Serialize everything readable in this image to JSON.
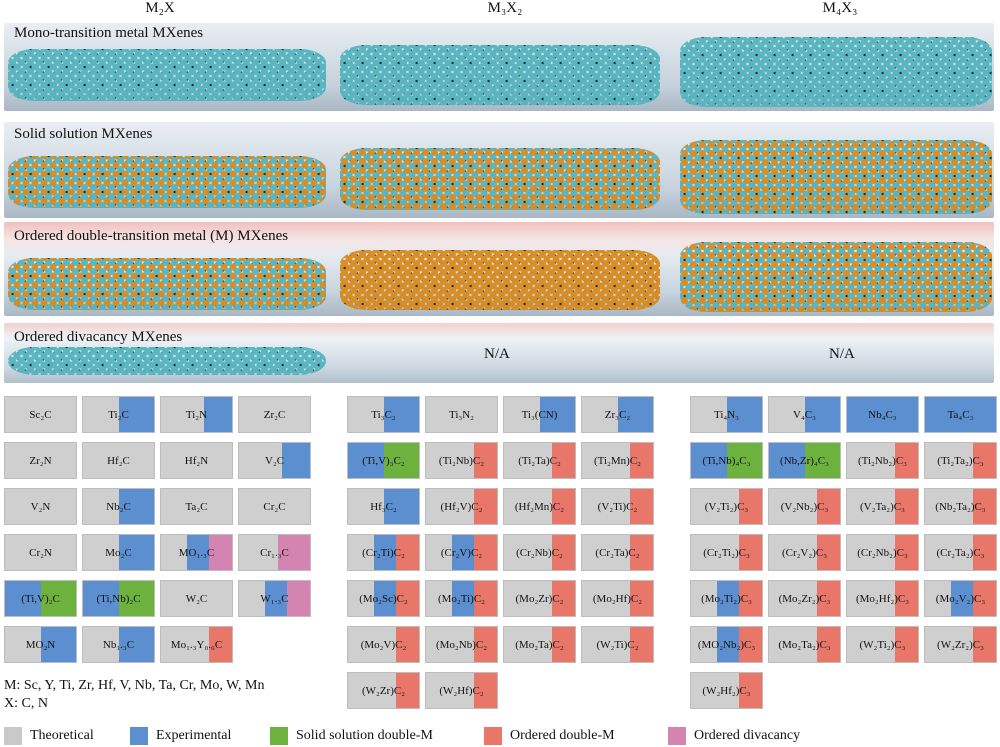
{
  "colors": {
    "theoretical": "#c9c9c9",
    "experimental": "#5b8fd0",
    "solid_solution": "#6db13e",
    "ordered_double": "#e8776a",
    "ordered_divacancy": "#d484b0",
    "teal_atom": "#52b5c0",
    "orange_atom": "#d98a1c"
  },
  "column_headers": [
    "M₂X",
    "M₃X₂",
    "M₄X₃"
  ],
  "rows": [
    {
      "title": "Mono-transition metal MXenes"
    },
    {
      "title": "Solid solution MXenes"
    },
    {
      "title": "Ordered double-transition metal (M) MXenes"
    },
    {
      "title": "Ordered divacancy MXenes"
    }
  ],
  "na_label": "N/A",
  "grids": {
    "m2x": [
      [
        {
          "label": "Sc₂C",
          "fills": []
        },
        {
          "label": "Ti₂C",
          "fills": [
            [
              "experimental",
              0.5
            ]
          ]
        },
        {
          "label": "Ti₂N",
          "fills": [
            [
              "experimental",
              0.4
            ]
          ]
        },
        {
          "label": "Zr₂C",
          "fills": []
        }
      ],
      [
        {
          "label": "Zr₂N",
          "fills": []
        },
        {
          "label": "Hf₂C",
          "fills": []
        },
        {
          "label": "Hf₂N",
          "fills": []
        },
        {
          "label": "V₂C",
          "fills": [
            [
              "experimental",
              0.4
            ]
          ]
        }
      ],
      [
        {
          "label": "V₂N",
          "fills": []
        },
        {
          "label": "Nb₂C",
          "fills": [
            [
              "experimental",
              0.5
            ]
          ]
        },
        {
          "label": "Ta₂C",
          "fills": []
        },
        {
          "label": "Cr₂C",
          "fills": []
        }
      ],
      [
        {
          "label": "Cr₂N",
          "fills": []
        },
        {
          "label": "Mo₂C",
          "fills": [
            [
              "experimental",
              0.5
            ]
          ]
        },
        {
          "label": "MO₁.₃C",
          "fills": [
            [
              "experimental",
              0.3
            ],
            [
              "ordered_divacancy",
              0.33
            ]
          ]
        },
        {
          "label": "Cr₁.₃C",
          "fills": [
            [
              "ordered_divacancy",
              0.45
            ]
          ]
        }
      ],
      [
        {
          "label": "(Ti,V)₂C",
          "fills": [
            [
              "experimental",
              0.5
            ],
            [
              "solid_solution",
              0.5
            ]
          ]
        },
        {
          "label": "(Ti,Nb)₂C",
          "fills": [
            [
              "experimental",
              0.5
            ],
            [
              "solid_solution",
              0.5
            ]
          ]
        },
        {
          "label": "W₂C",
          "fills": []
        },
        {
          "label": "W₁.₃C",
          "fills": [
            [
              "experimental",
              0.3
            ],
            [
              "ordered_divacancy",
              0.33
            ]
          ]
        }
      ],
      [
        {
          "label": "MO₂N",
          "fills": [
            [
              "experimental",
              0.5
            ]
          ]
        },
        {
          "label": "Nb₁.₃C",
          "fills": [
            [
              "experimental",
              0.5
            ]
          ]
        },
        {
          "label": "Mo₁.₃Y₀.₆C",
          "fills": [
            [
              "ordered_double",
              0.33
            ]
          ]
        },
        null
      ]
    ],
    "m3x2": [
      [
        {
          "label": "Ti₃C₂",
          "fills": [
            [
              "experimental",
              0.5
            ]
          ]
        },
        {
          "label": "Ti₃N₂",
          "fills": []
        },
        {
          "label": "Ti₃(CN)",
          "fills": [
            [
              "experimental",
              0.5
            ]
          ]
        },
        {
          "label": "Zr₃C₂",
          "fills": [
            [
              "experimental",
              0.5
            ]
          ]
        }
      ],
      [
        {
          "label": "(Ti,V)₃C₂",
          "fills": [
            [
              "experimental",
              0.5
            ],
            [
              "solid_solution",
              0.5
            ]
          ]
        },
        {
          "label": "(Ti₂Nb)C₂",
          "fills": [
            [
              "ordered_double",
              0.33
            ]
          ]
        },
        {
          "label": "(Ti₂Ta)C₂",
          "fills": [
            [
              "ordered_double",
              0.33
            ]
          ]
        },
        {
          "label": "(Ti₂Mn)C₂",
          "fills": [
            [
              "ordered_double",
              0.33
            ]
          ]
        }
      ],
      [
        {
          "label": "Hf₃C₂",
          "fills": [
            [
              "experimental",
              0.5
            ]
          ]
        },
        {
          "label": "(Hf₂V)C₂",
          "fills": [
            [
              "ordered_double",
              0.33
            ]
          ]
        },
        {
          "label": "(Hf₂Mn)C₂",
          "fills": [
            [
              "ordered_double",
              0.33
            ]
          ]
        },
        {
          "label": "(V₂Ti)C₂",
          "fills": [
            [
              "ordered_double",
              0.33
            ]
          ]
        }
      ],
      [
        {
          "label": "(Cr₂Ti)C₂",
          "fills": [
            [
              "experimental",
              0.3
            ],
            [
              "ordered_double",
              0.33
            ]
          ]
        },
        {
          "label": "(Cr₂V)C₂",
          "fills": [
            [
              "experimental",
              0.3
            ],
            [
              "ordered_double",
              0.33
            ]
          ]
        },
        {
          "label": "(Cr₂Nb)C₂",
          "fills": [
            [
              "ordered_double",
              0.33
            ]
          ]
        },
        {
          "label": "(Cr₂Ta)C₂",
          "fills": [
            [
              "ordered_double",
              0.33
            ]
          ]
        }
      ],
      [
        {
          "label": "(Mo₂Sc)C₂",
          "fills": [
            [
              "experimental",
              0.3
            ],
            [
              "ordered_double",
              0.33
            ]
          ]
        },
        {
          "label": "(Mo₂Ti)C₂",
          "fills": [
            [
              "experimental",
              0.3
            ],
            [
              "ordered_double",
              0.33
            ]
          ]
        },
        {
          "label": "(Mo₂Zr)C₂",
          "fills": [
            [
              "ordered_double",
              0.33
            ]
          ]
        },
        {
          "label": "(Mo₂Hf)C₂",
          "fills": [
            [
              "ordered_double",
              0.33
            ]
          ]
        }
      ],
      [
        {
          "label": "(Mo₂V)C₂",
          "fills": [
            [
              "ordered_double",
              0.33
            ]
          ]
        },
        {
          "label": "(Mo₂Nb)C₂",
          "fills": [
            [
              "ordered_double",
              0.33
            ]
          ]
        },
        {
          "label": "(Mo₂Ta)C₂",
          "fills": [
            [
              "ordered_double",
              0.33
            ]
          ]
        },
        {
          "label": "(W₂Ti)C₂",
          "fills": [
            [
              "ordered_double",
              0.33
            ]
          ]
        }
      ],
      [
        {
          "label": "(W₂Zr)C₂",
          "fills": [
            [
              "ordered_double",
              0.33
            ]
          ]
        },
        {
          "label": "(W₂Hf)C₂",
          "fills": [
            [
              "ordered_double",
              0.33
            ]
          ]
        },
        null,
        null
      ]
    ],
    "m4x3": [
      [
        {
          "label": "Ti₄N₃",
          "fills": [
            [
              "experimental",
              0.5
            ]
          ]
        },
        {
          "label": "V₄C₃",
          "fills": [
            [
              "experimental",
              0.5
            ]
          ]
        },
        {
          "label": "Nb₄C₃",
          "fills": [
            [
              "experimental",
              1.0
            ]
          ]
        },
        {
          "label": "Ta₄C₃",
          "fills": [
            [
              "experimental",
              1.0
            ]
          ]
        }
      ],
      [
        {
          "label": "(Ti,Nb)₄C₃",
          "fills": [
            [
              "experimental",
              0.5
            ],
            [
              "solid_solution",
              0.5
            ]
          ]
        },
        {
          "label": "(Nb,Zr)₄C₃",
          "fills": [
            [
              "experimental",
              0.5
            ],
            [
              "solid_solution",
              0.5
            ]
          ]
        },
        {
          "label": "(Ti₂Nb₂)C₃",
          "fills": [
            [
              "ordered_double",
              0.33
            ]
          ]
        },
        {
          "label": "(Ti₂Ta₂)C₃",
          "fills": [
            [
              "ordered_double",
              0.33
            ]
          ]
        }
      ],
      [
        {
          "label": "(V₂Ti₂)C₃",
          "fills": [
            [
              "ordered_double",
              0.33
            ]
          ]
        },
        {
          "label": "(V₂Nb₂)C₃",
          "fills": [
            [
              "ordered_double",
              0.33
            ]
          ]
        },
        {
          "label": "(V₂Ta₂)C₃",
          "fills": [
            [
              "ordered_double",
              0.33
            ]
          ]
        },
        {
          "label": "(Nb₂Ta₂)C₃",
          "fills": [
            [
              "ordered_double",
              0.33
            ]
          ]
        }
      ],
      [
        {
          "label": "(Cr₂Ti₂)C₃",
          "fills": [
            [
              "ordered_double",
              0.33
            ]
          ]
        },
        {
          "label": "(Cr₂V₂)C₃",
          "fills": [
            [
              "ordered_double",
              0.33
            ]
          ]
        },
        {
          "label": "(Cr₂Nb₂)C₃",
          "fills": [
            [
              "ordered_double",
              0.33
            ]
          ]
        },
        {
          "label": "(Cr₂Ta₂)C₃",
          "fills": [
            [
              "ordered_double",
              0.33
            ]
          ]
        }
      ],
      [
        {
          "label": "(Mo₂Ti₂)C₃",
          "fills": [
            [
              "experimental",
              0.3
            ],
            [
              "ordered_double",
              0.33
            ]
          ]
        },
        {
          "label": "(Mo₂Zr₂)C₃",
          "fills": [
            [
              "ordered_double",
              0.33
            ]
          ]
        },
        {
          "label": "(Mo₂Hf₂)C₃",
          "fills": [
            [
              "ordered_double",
              0.33
            ]
          ]
        },
        {
          "label": "(Mo₂V₂)C₃",
          "fills": [
            [
              "experimental",
              0.3
            ],
            [
              "ordered_double",
              0.33
            ]
          ]
        }
      ],
      [
        {
          "label": "(MO₂Nb₂)C₃",
          "fills": [
            [
              "experimental",
              0.3
            ],
            [
              "ordered_double",
              0.33
            ]
          ]
        },
        {
          "label": "(Mo₂Ta₂)C₃",
          "fills": [
            [
              "ordered_double",
              0.33
            ]
          ]
        },
        {
          "label": "(W₂Ti₂)C₃",
          "fills": [
            [
              "ordered_double",
              0.33
            ]
          ]
        },
        {
          "label": "(W₂Zr₂)C₃",
          "fills": [
            [
              "ordered_double",
              0.33
            ]
          ]
        }
      ],
      [
        {
          "label": "(W₂Hf₂)C₃",
          "fills": [
            [
              "ordered_double",
              0.33
            ]
          ]
        },
        null,
        null,
        null
      ]
    ]
  },
  "notes": {
    "m_line": "M: Sc, Y, Ti, Zr, Hf, V, Nb, Ta, Cr, Mo, W, Mn",
    "x_line": "X: C, N"
  },
  "legend": [
    {
      "key": "theoretical",
      "label": "Theoretical"
    },
    {
      "key": "experimental",
      "label": "Experimental"
    },
    {
      "key": "solid_solution",
      "label": "Solid solution double-M"
    },
    {
      "key": "ordered_double",
      "label": "Ordered double-M"
    },
    {
      "key": "ordered_divacancy",
      "label": "Ordered divacancy"
    }
  ]
}
